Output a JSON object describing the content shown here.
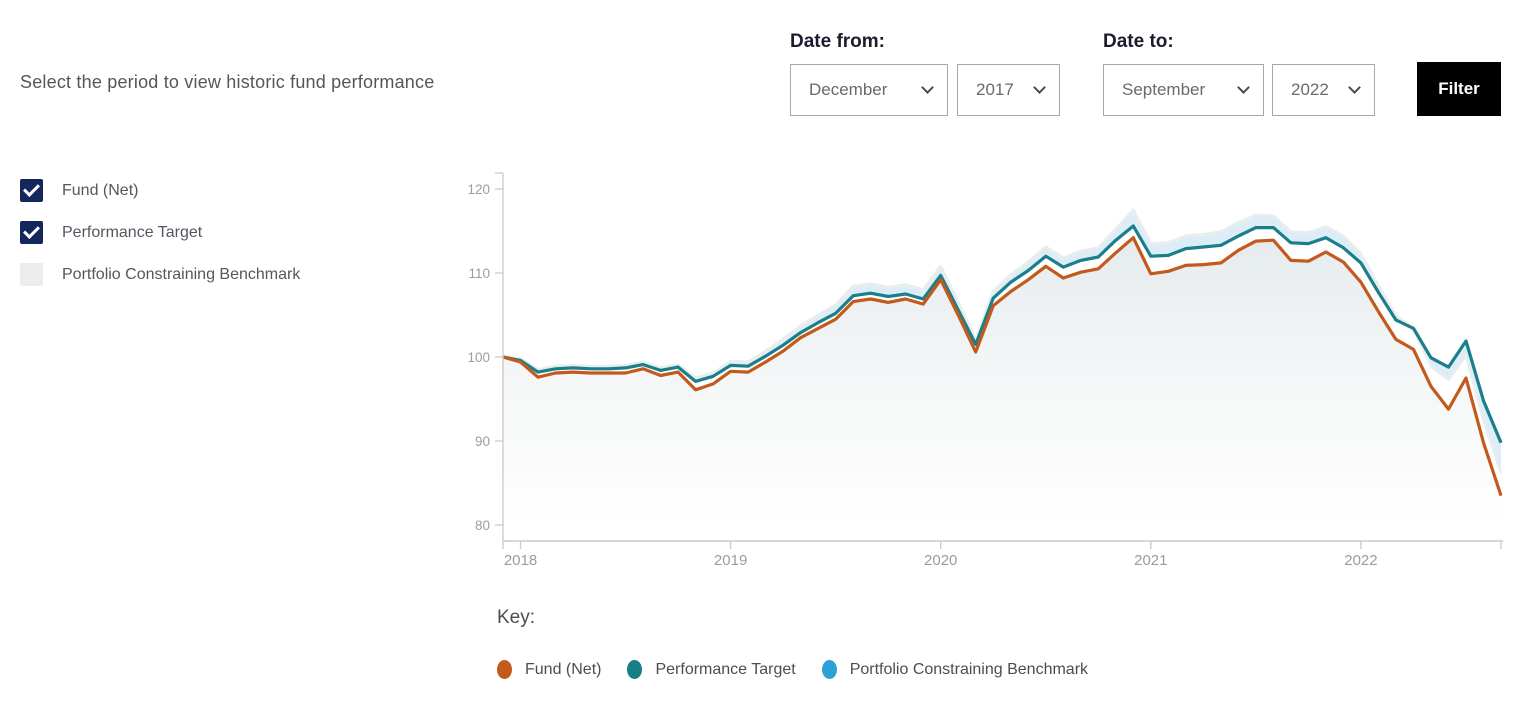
{
  "header": {
    "instruction": "Select the period to view historic fund performance"
  },
  "filters": {
    "date_from": {
      "label": "Date from:",
      "month": "December",
      "year": "2017"
    },
    "date_to": {
      "label": "Date to:",
      "month": "September",
      "year": "2022"
    },
    "filter_button_label": "Filter"
  },
  "series_toggles": [
    {
      "label": "Fund (Net)",
      "checked": true
    },
    {
      "label": "Performance Target",
      "checked": true
    },
    {
      "label": "Portfolio Constraining Benchmark",
      "checked": false
    }
  ],
  "key": {
    "title": "Key:",
    "items": [
      {
        "label": "Fund (Net)",
        "color": "#c4591c"
      },
      {
        "label": "Performance Target",
        "color": "#177e89"
      },
      {
        "label": "Portfolio Constraining Benchmark",
        "color": "#2e9fd9"
      }
    ]
  },
  "colors": {
    "checkbox_navy": "#14275d",
    "checkbox_unchecked": "#ececec",
    "fund_line": "#c4591c",
    "target_line": "#1a7f8b",
    "benchmark_band": "#daecf7",
    "benchmark_edge": "#e8edee",
    "axis": "#cccccc",
    "tick_label": "#9c9c9c",
    "filter_button_bg": "#000000"
  },
  "chart_data": {
    "type": "line",
    "title": "",
    "xlabel": "",
    "ylabel": "",
    "y_ticks": [
      80,
      90,
      100,
      110,
      120
    ],
    "ylim": [
      78,
      122
    ],
    "grid": false,
    "legend_position": "bottom",
    "x": [
      "2017-12",
      "2018-01",
      "2018-02",
      "2018-03",
      "2018-04",
      "2018-05",
      "2018-06",
      "2018-07",
      "2018-08",
      "2018-09",
      "2018-10",
      "2018-11",
      "2018-12",
      "2019-01",
      "2019-02",
      "2019-03",
      "2019-04",
      "2019-05",
      "2019-06",
      "2019-07",
      "2019-08",
      "2019-09",
      "2019-10",
      "2019-11",
      "2019-12",
      "2020-01",
      "2020-02",
      "2020-03",
      "2020-04",
      "2020-05",
      "2020-06",
      "2020-07",
      "2020-08",
      "2020-09",
      "2020-10",
      "2020-11",
      "2020-12",
      "2021-01",
      "2021-02",
      "2021-03",
      "2021-04",
      "2021-05",
      "2021-06",
      "2021-07",
      "2021-08",
      "2021-09",
      "2021-10",
      "2021-11",
      "2021-12",
      "2022-01",
      "2022-02",
      "2022-03",
      "2022-04",
      "2022-05",
      "2022-06",
      "2022-07",
      "2022-08",
      "2022-09"
    ],
    "x_year_ticks": [
      {
        "label": "2018",
        "index": 1
      },
      {
        "label": "2019",
        "index": 13
      },
      {
        "label": "2020",
        "index": 25
      },
      {
        "label": "2021",
        "index": 37
      },
      {
        "label": "2022",
        "index": 49
      }
    ],
    "series": [
      {
        "name": "Fund (Net)",
        "style": "line",
        "color": "#c4591c",
        "values": [
          100,
          99.4,
          97.6,
          98.1,
          98.2,
          98.1,
          98.1,
          98.1,
          98.6,
          97.8,
          98.2,
          96.1,
          96.8,
          98.3,
          98.2,
          99.4,
          100.7,
          102.3,
          103.4,
          104.5,
          106.6,
          106.9,
          106.5,
          106.9,
          106.3,
          109.2,
          105,
          100.6,
          106.1,
          107.8,
          109.2,
          110.8,
          109.4,
          110.1,
          110.5,
          112.4,
          114.2,
          109.9,
          110.2,
          110.9,
          111,
          111.2,
          112.7,
          113.8,
          113.9,
          111.5,
          111.4,
          112.5,
          111.3,
          108.9,
          105.4,
          102.1,
          100.9,
          96.5,
          93.8,
          97.5,
          89.8,
          83.5
        ]
      },
      {
        "name": "Performance Target",
        "style": "line",
        "color": "#1a7f8b",
        "values": [
          100,
          99.6,
          98.2,
          98.6,
          98.7,
          98.6,
          98.6,
          98.7,
          99.1,
          98.4,
          98.8,
          97.1,
          97.7,
          99,
          98.9,
          100.1,
          101.4,
          102.9,
          104.1,
          105.2,
          107.3,
          107.6,
          107.2,
          107.5,
          106.9,
          109.7,
          105.6,
          101.5,
          107,
          108.9,
          110.3,
          112,
          110.7,
          111.5,
          111.9,
          113.9,
          115.6,
          112,
          112.1,
          112.9,
          113.1,
          113.3,
          114.4,
          115.4,
          115.4,
          113.6,
          113.5,
          114.2,
          113,
          111.2,
          107.7,
          104.4,
          103.4,
          99.9,
          98.8,
          101.9,
          94.8,
          89.8
        ]
      },
      {
        "name": "Portfolio Constraining Benchmark",
        "style": "band-area",
        "color": "#2e9fd9",
        "values": [
          100,
          99.8,
          98.5,
          98.9,
          99,
          98.9,
          98.9,
          99,
          99.4,
          98.7,
          99.1,
          97.5,
          98.1,
          99.5,
          99.4,
          100.7,
          102.1,
          103.7,
          105,
          106.2,
          108.4,
          108.7,
          108.3,
          108.6,
          108,
          110.8,
          106.5,
          102.1,
          107.8,
          109.8,
          111.3,
          113.1,
          111.8,
          112.6,
          113,
          115.2,
          117.5,
          113.5,
          113.6,
          114.4,
          114.6,
          114.9,
          116,
          116.9,
          116.8,
          114.9,
          114.8,
          115.5,
          114.4,
          112.3,
          108.5,
          104.9,
          103.4,
          98.9,
          97.3,
          100.2,
          92.5,
          86.2
        ]
      }
    ]
  }
}
